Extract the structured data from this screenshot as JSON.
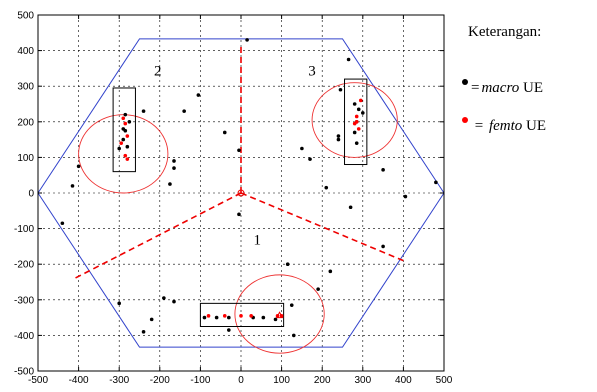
{
  "legend": {
    "title": "Keterangan:",
    "items": [
      {
        "symbol": "•",
        "eq": "=",
        "term": "macro",
        "suffix": " UE",
        "color": "#000000"
      },
      {
        "symbol": "•",
        "eq": " = ",
        "term": "femto",
        "suffix": " UE",
        "color": "#ff0000"
      }
    ]
  },
  "chart_data": {
    "type": "scatter",
    "title": "",
    "xlabel": "",
    "ylabel": "",
    "xlim": [
      -500,
      500
    ],
    "ylim": [
      -500,
      500
    ],
    "xticks": [
      -500,
      -400,
      -300,
      -200,
      -100,
      0,
      100,
      200,
      300,
      400,
      500
    ],
    "yticks": [
      -500,
      -400,
      -300,
      -200,
      -100,
      0,
      100,
      200,
      300,
      400,
      500
    ],
    "grid": true,
    "hexagon": [
      [
        -250,
        433
      ],
      [
        250,
        433
      ],
      [
        500,
        0
      ],
      [
        250,
        -433
      ],
      [
        -250,
        -433
      ],
      [
        -500,
        0
      ]
    ],
    "sector_lines": [
      [
        [
          0,
          0
        ],
        [
          0,
          420
        ]
      ],
      [
        [
          0,
          0
        ],
        [
          -410,
          -240
        ]
      ],
      [
        [
          0,
          0
        ],
        [
          400,
          -190
        ]
      ]
    ],
    "sector_labels": [
      {
        "text": "1",
        "x": 40,
        "y": -145
      },
      {
        "text": "2",
        "x": -205,
        "y": 330
      },
      {
        "text": "3",
        "x": 175,
        "y": 330
      }
    ],
    "femto_circles": [
      {
        "cx": -290,
        "cy": 110,
        "r": 110
      },
      {
        "cx": 280,
        "cy": 205,
        "r": 105
      },
      {
        "cx": 95,
        "cy": -340,
        "r": 110
      }
    ],
    "femto_boxes": [
      {
        "x0": -315,
        "y0": 60,
        "x1": -260,
        "y1": 295
      },
      {
        "x0": 255,
        "y0": 80,
        "x1": 310,
        "y1": 320
      },
      {
        "x0": -100,
        "y0": -375,
        "x1": 105,
        "y1": -310
      }
    ],
    "series": [
      {
        "name": "macro UE",
        "color": "#000000",
        "points": [
          [
            -440,
            -85
          ],
          [
            -415,
            20
          ],
          [
            -400,
            75
          ],
          [
            -300,
            -310
          ],
          [
            -285,
            175
          ],
          [
            -290,
            150
          ],
          [
            -280,
            130
          ],
          [
            -275,
            200
          ],
          [
            -300,
            125
          ],
          [
            -290,
            180
          ],
          [
            -285,
            220
          ],
          [
            -240,
            230
          ],
          [
            -220,
            -355
          ],
          [
            -240,
            -390
          ],
          [
            -190,
            -295
          ],
          [
            -165,
            -305
          ],
          [
            -165,
            90
          ],
          [
            -165,
            70
          ],
          [
            -175,
            25
          ],
          [
            -140,
            230
          ],
          [
            -105,
            275
          ],
          [
            -90,
            -350
          ],
          [
            -60,
            -350
          ],
          [
            -30,
            -385
          ],
          [
            -30,
            -350
          ],
          [
            -5,
            120
          ],
          [
            -5,
            -60
          ],
          [
            -40,
            170
          ],
          [
            15,
            430
          ],
          [
            30,
            -350
          ],
          [
            55,
            -350
          ],
          [
            85,
            -355
          ],
          [
            115,
            -200
          ],
          [
            125,
            -315
          ],
          [
            130,
            -400
          ],
          [
            150,
            125
          ],
          [
            170,
            95
          ],
          [
            190,
            -270
          ],
          [
            210,
            15
          ],
          [
            220,
            -220
          ],
          [
            240,
            150
          ],
          [
            240,
            160
          ],
          [
            245,
            290
          ],
          [
            265,
            375
          ],
          [
            270,
            -40
          ],
          [
            280,
            250
          ],
          [
            285,
            140
          ],
          [
            290,
            235
          ],
          [
            300,
            225
          ],
          [
            285,
            200
          ],
          [
            280,
            170
          ],
          [
            350,
            -150
          ],
          [
            350,
            65
          ],
          [
            405,
            -10
          ],
          [
            480,
            30
          ]
        ]
      },
      {
        "name": "femto UE",
        "color": "#ff0000",
        "points": [
          [
            -290,
            210
          ],
          [
            -285,
            195
          ],
          [
            -280,
            160
          ],
          [
            -295,
            140
          ],
          [
            -285,
            105
          ],
          [
            -280,
            95
          ],
          [
            285,
            200
          ],
          [
            290,
            180
          ],
          [
            285,
            215
          ],
          [
            295,
            260
          ],
          [
            280,
            195
          ],
          [
            -80,
            -345
          ],
          [
            -40,
            -345
          ],
          [
            0,
            -345
          ],
          [
            25,
            -345
          ],
          [
            90,
            -345
          ],
          [
            100,
            -345
          ]
        ]
      }
    ],
    "sector_origin_marker": [
      0,
      0
    ]
  }
}
